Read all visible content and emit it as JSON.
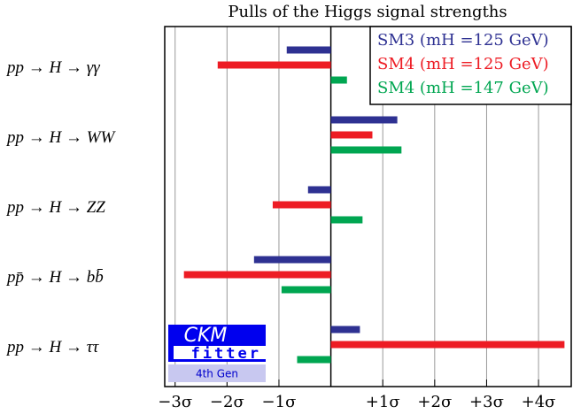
{
  "chart_data": {
    "type": "hbar",
    "title": "Pulls of the Higgs signal strengths",
    "categories": [
      "pp → H → γγ",
      "pp → H → WW",
      "pp → H → ZZ",
      "pp̄ → H → bb̄",
      "pp → H → ττ"
    ],
    "series": [
      {
        "name": "SM3 (mH =125 GeV)",
        "color": "#2e3192",
        "values": [
          -0.85,
          1.28,
          -0.44,
          -1.48,
          0.56
        ]
      },
      {
        "name": "SM4 (mH =125 GeV)",
        "color": "#ed1c24",
        "values": [
          -2.18,
          0.8,
          -1.12,
          -2.83,
          4.5
        ]
      },
      {
        "name": "SM4 (mH =147 GeV)",
        "color": "#00a651",
        "values": [
          0.31,
          1.36,
          0.61,
          -0.95,
          -0.65
        ]
      }
    ],
    "xlim": [
      -3.2,
      4.63
    ],
    "xticks": [
      {
        "value": -3,
        "label": "−3σ"
      },
      {
        "value": -2,
        "label": "−2σ"
      },
      {
        "value": -1,
        "label": "−1σ"
      },
      {
        "value": 1,
        "label": "+1σ"
      },
      {
        "value": 2,
        "label": "+2σ"
      },
      {
        "value": 3,
        "label": "+3σ"
      },
      {
        "value": 4,
        "label": "+4σ"
      }
    ],
    "grid": true,
    "legend": "top-right",
    "logo_text": [
      "CKM",
      "fitter",
      "4th Gen"
    ]
  }
}
